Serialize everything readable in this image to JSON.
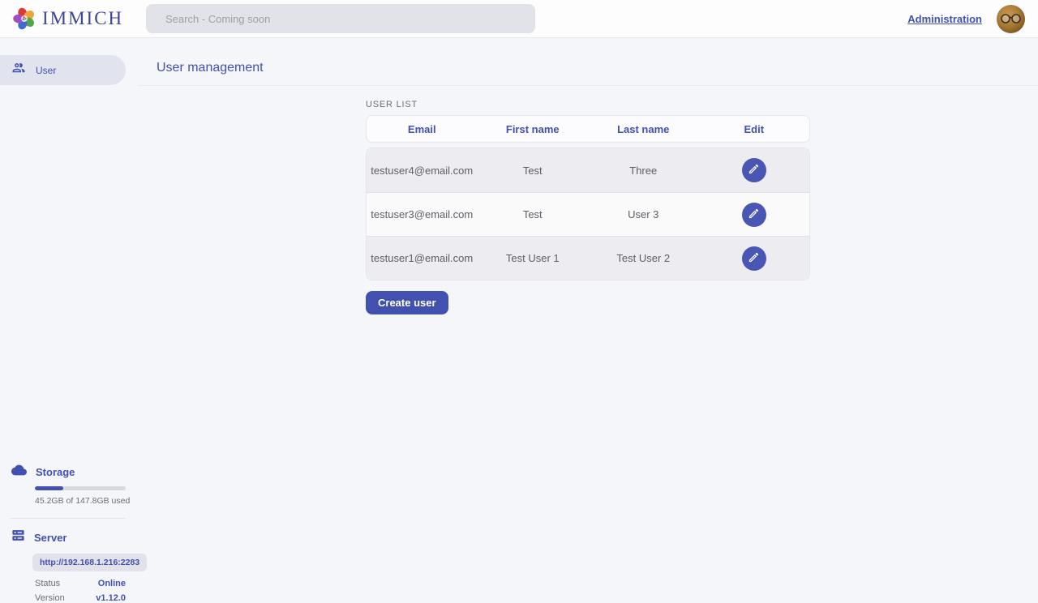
{
  "header": {
    "logo_text": "IMMICH",
    "search_placeholder": "Search - Coming soon",
    "admin_link": "Administration"
  },
  "sidebar": {
    "items": [
      {
        "label": "User",
        "active": true
      }
    ],
    "storage": {
      "title": "Storage",
      "usage_text": "45.2GB of 147.8GB used",
      "percent_used": 31
    },
    "server": {
      "title": "Server",
      "url": "http://192.168.1.216:2283",
      "rows": [
        {
          "label": "Status",
          "value": "Online"
        },
        {
          "label": "Version",
          "value": "v1.12.0"
        }
      ]
    }
  },
  "main": {
    "page_title": "User management",
    "section_title": "USER LIST",
    "table": {
      "columns": [
        "Email",
        "First name",
        "Last name",
        "Edit"
      ],
      "rows": [
        {
          "email": "testuser4@email.com",
          "first_name": "Test",
          "last_name": "Three"
        },
        {
          "email": "testuser3@email.com",
          "first_name": "Test",
          "last_name": "User 3"
        },
        {
          "email": "testuser1@email.com",
          "first_name": "Test User 1",
          "last_name": "Test User 2"
        }
      ]
    },
    "create_button": "Create user"
  },
  "icons": {
    "logo": "immich-flower-icon",
    "sidebar_user": "users-group-icon",
    "storage": "cloud-icon",
    "server": "server-icon",
    "edit": "pencil-icon"
  },
  "colors": {
    "primary": "#4250af",
    "edit_btn": "#4a56b4",
    "page_bg": "#f5f6fa",
    "header_bg": "#fdfdfd",
    "search_bg": "#e2e3e9",
    "pill_bg": "#e1e3ee",
    "row_alt": "#ededf1",
    "row_base": "#fafafb"
  }
}
